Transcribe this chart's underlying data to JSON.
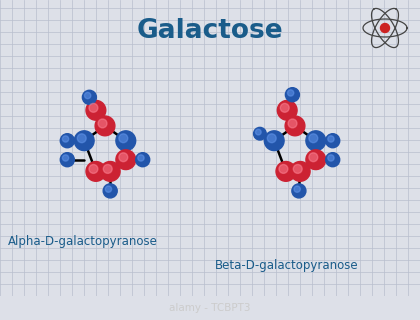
{
  "title": "Galactose",
  "title_color": "#1a5c8a",
  "title_fontsize": 19,
  "bg_color": "#dde0e8",
  "grid_color": "#b8bece",
  "watermark": "alamy - TCBPT3",
  "label_alpha": "Alpha-D-galactopyranose",
  "label_beta": "Beta-D-galactopyranose",
  "label_color": "#1a5c8a",
  "label_fontsize": 8.5,
  "red_color": "#cc2233",
  "blue_color": "#2255aa",
  "red_color2": "#dd3344",
  "blue_color2": "#3366bb"
}
